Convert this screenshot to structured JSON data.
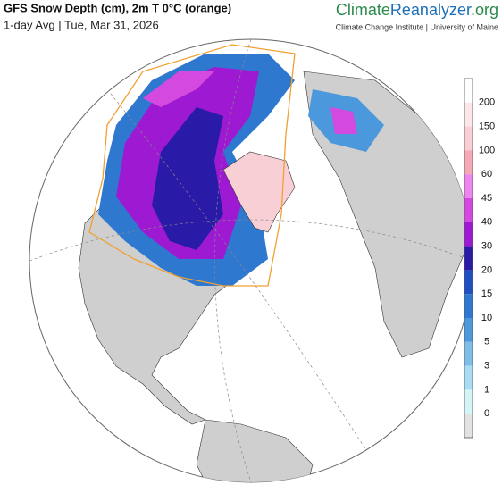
{
  "header": {
    "title": "GFS Snow Depth (cm), 2m T 0°C (orange)",
    "subtitle": "1-day Avg | Tue, Mar 31, 2026",
    "brand_left": "Climate",
    "brand_mid": "Reanalyzer",
    "brand_right": ".org",
    "institute": "Climate Change Institute | University of Maine"
  },
  "legend": {
    "labels": [
      "200",
      "150",
      "100",
      "60",
      "45",
      "40",
      "30",
      "20",
      "15",
      "10",
      "5",
      "3",
      "1",
      "0"
    ],
    "colors": [
      "#ffffff",
      "#fbe6e8",
      "#f8cfd4",
      "#f4a9b5",
      "#ee84ee",
      "#d44ae0",
      "#9e1ad2",
      "#2a1aa8",
      "#1f4fc2",
      "#2f78d0",
      "#4c98dc",
      "#7fbde8",
      "#a9dcf2",
      "#d4f4f8",
      "#e2e2e2"
    ]
  }
}
